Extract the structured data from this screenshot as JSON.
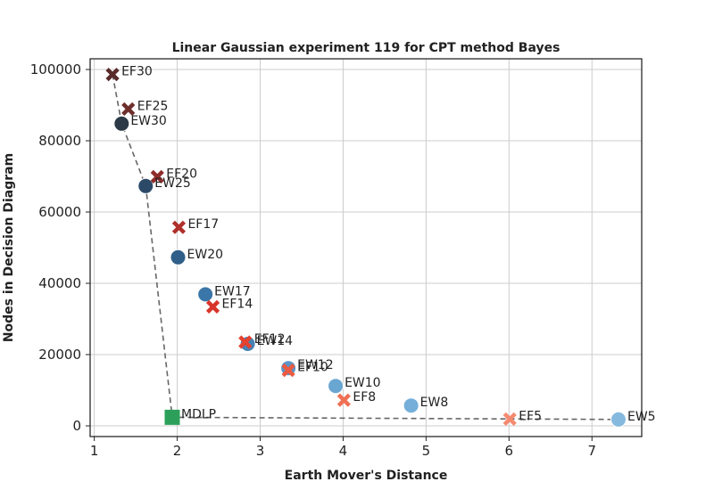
{
  "chart_data": {
    "type": "scatter",
    "title": "Linear Gaussian experiment 119 for CPT method Bayes",
    "xlabel": "Earth Mover's Distance",
    "ylabel": "Nodes in Decision Diagram",
    "xlim": [
      0.95,
      7.6
    ],
    "ylim": [
      -3000,
      103000
    ],
    "xticks": [
      1,
      2,
      3,
      4,
      5,
      6,
      7
    ],
    "yticks": [
      0,
      20000,
      40000,
      60000,
      80000,
      100000
    ],
    "grid": true,
    "series": [
      {
        "marker": "circle",
        "points": [
          {
            "label": "EW30",
            "x": 1.33,
            "y": 84800,
            "color": "#2b3a46"
          },
          {
            "label": "EW25",
            "x": 1.62,
            "y": 67300,
            "color": "#2c4a68"
          },
          {
            "label": "EW20",
            "x": 2.01,
            "y": 47300,
            "color": "#2f5f88"
          },
          {
            "label": "EW17",
            "x": 2.34,
            "y": 36900,
            "color": "#3a76a8"
          },
          {
            "label": "EW14",
            "x": 2.85,
            "y": 23000,
            "color": "#4682b4"
          },
          {
            "label": "EW12",
            "x": 3.34,
            "y": 16200,
            "color": "#5a95c6"
          },
          {
            "label": "EW10",
            "x": 3.91,
            "y": 11200,
            "color": "#6aa6d2"
          },
          {
            "label": "EW8",
            "x": 4.82,
            "y": 5700,
            "color": "#75afd9"
          },
          {
            "label": "EW5",
            "x": 7.32,
            "y": 1800,
            "color": "#86b9de"
          }
        ]
      },
      {
        "marker": "x",
        "points": [
          {
            "label": "EF30",
            "x": 1.22,
            "y": 98600,
            "color": "#5a2b2b"
          },
          {
            "label": "EF25",
            "x": 1.41,
            "y": 88900,
            "color": "#6e2f2c"
          },
          {
            "label": "EF20",
            "x": 1.76,
            "y": 69900,
            "color": "#8e2d2b"
          },
          {
            "label": "EF17",
            "x": 2.02,
            "y": 55700,
            "color": "#b0302b"
          },
          {
            "label": "EF14",
            "x": 2.43,
            "y": 33400,
            "color": "#d8352b"
          },
          {
            "label": "EF12",
            "x": 2.82,
            "y": 23500,
            "color": "#e4412f"
          },
          {
            "label": "EF10",
            "x": 3.34,
            "y": 15600,
            "color": "#ec5a41"
          },
          {
            "label": "EF8",
            "x": 4.01,
            "y": 7200,
            "color": "#f07054"
          },
          {
            "label": "EF5",
            "x": 6.01,
            "y": 1900,
            "color": "#f58a70"
          }
        ]
      },
      {
        "marker": "square",
        "points": [
          {
            "label": "MDLP",
            "x": 1.94,
            "y": 2400,
            "color": "#2ca05a"
          }
        ]
      }
    ],
    "frontier": {
      "style": "dashed",
      "color": "#666666",
      "path": [
        "EF30",
        "EW30",
        "EW25",
        "MDLP",
        "EW5"
      ]
    }
  }
}
